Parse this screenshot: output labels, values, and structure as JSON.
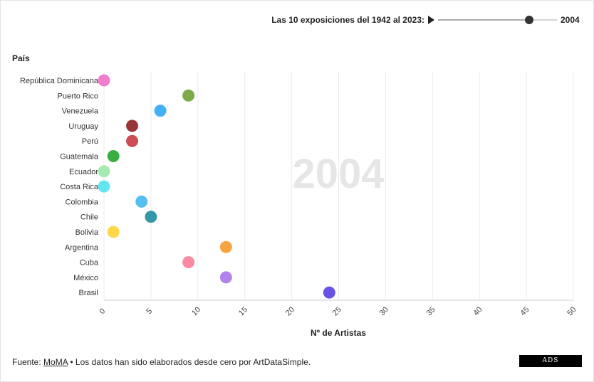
{
  "controls": {
    "label": "Las 10 exposiciones del 1942 al 2023:",
    "year": "2004",
    "play_icon": "play-icon",
    "year_min": 1942,
    "year_max": 2023,
    "year_value": 2004
  },
  "chart_data": {
    "type": "scatter",
    "title": "",
    "watermark": "2004",
    "ylabel": "País",
    "xlabel": "Nº de Artistas",
    "xlim": [
      0,
      50
    ],
    "xticks": [
      0,
      5,
      10,
      15,
      20,
      25,
      30,
      35,
      40,
      45,
      50
    ],
    "grid": true,
    "points": [
      {
        "country": "República Dominicana",
        "value": 0,
        "color": "#ee6fc8"
      },
      {
        "country": "Puerto Rico",
        "value": 9,
        "color": "#6ea334"
      },
      {
        "country": "Venezuela",
        "value": 6,
        "color": "#2ea8f7"
      },
      {
        "country": "Uruguay",
        "value": 3,
        "color": "#8c1f24"
      },
      {
        "country": "Perú",
        "value": 3,
        "color": "#c93a3f"
      },
      {
        "country": "Guatemala",
        "value": 1,
        "color": "#25a52c"
      },
      {
        "country": "Ecuador",
        "value": 0,
        "color": "#9de8a9"
      },
      {
        "country": "Costa Rica",
        "value": 0,
        "color": "#52e3f0"
      },
      {
        "country": "Colombia",
        "value": 4,
        "color": "#44b8f0"
      },
      {
        "country": "Chile",
        "value": 5,
        "color": "#1f8d9c"
      },
      {
        "country": "Bolivia",
        "value": 1,
        "color": "#ffd335"
      },
      {
        "country": "Argentina",
        "value": 13,
        "color": "#f99a2c"
      },
      {
        "country": "Cuba",
        "value": 9,
        "color": "#f97d97"
      },
      {
        "country": "México",
        "value": 13,
        "color": "#a774e8"
      },
      {
        "country": "Brasil",
        "value": 24,
        "color": "#5b3fe3"
      }
    ]
  },
  "footer": {
    "prefix": "Fuente: ",
    "source_link": "MoMA",
    "suffix": " • Los datos han sido elaborados desde cero por ArtDataSimple.",
    "logo_text": "ADS"
  }
}
